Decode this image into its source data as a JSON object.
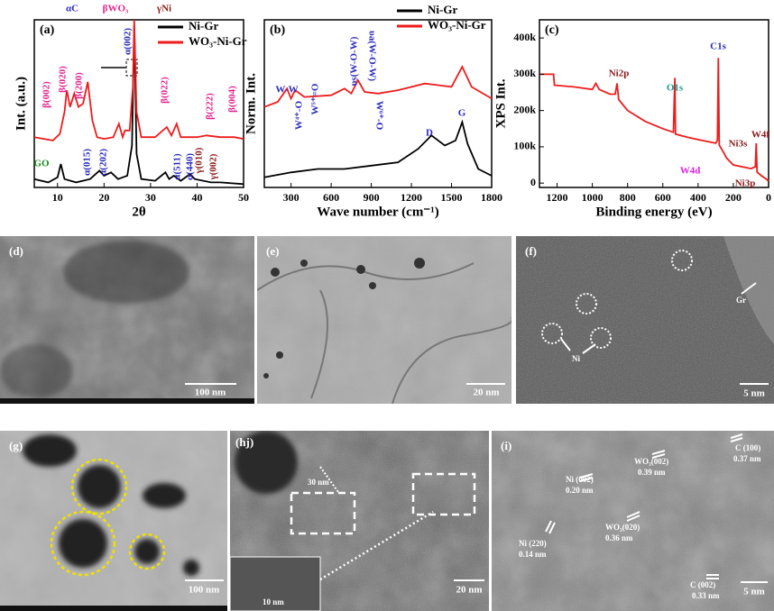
{
  "chart_data": [
    {
      "type": "line",
      "panel": "(a)",
      "xlabel": "2θ",
      "ylabel": "Int. (a.u.)",
      "xlim": [
        5,
        50
      ],
      "xticks": [
        10,
        20,
        30,
        40,
        50
      ],
      "ylim": [
        0,
        10
      ],
      "legend": "upper right",
      "series": [
        {
          "name": "Ni-Gr",
          "color": "#000000",
          "x": [
            5,
            8,
            10,
            10.7,
            11.5,
            14,
            17,
            19,
            20,
            21.5,
            23,
            25,
            26,
            26.5,
            27,
            28,
            31,
            33.2,
            34,
            35,
            36.5,
            38.5,
            39.5,
            43,
            45,
            50
          ],
          "values": [
            0.5,
            0.3,
            0.6,
            1.4,
            0.5,
            0.3,
            0.5,
            1.0,
            0.7,
            0.9,
            0.5,
            0.7,
            2.5,
            9.6,
            2.0,
            0.5,
            0.4,
            0.9,
            0.5,
            0.7,
            0.4,
            0.8,
            0.5,
            0.3,
            0.3,
            0.2
          ]
        },
        {
          "name": "WO₃-Ni-Gr",
          "color": "#ee1c1c",
          "x": [
            5,
            9,
            10.5,
            11.5,
            12,
            12.7,
            13.6,
            14.5,
            15.5,
            16.5,
            17.5,
            18.5,
            20,
            22,
            23.2,
            24,
            24.5,
            25.5,
            26.2,
            26.5,
            27,
            28,
            31,
            33.5,
            34.5,
            35.6,
            36.5,
            40,
            42,
            45,
            48,
            50
          ],
          "values": [
            3.0,
            2.8,
            3.2,
            4.5,
            5.8,
            4.8,
            5.6,
            4.8,
            5.0,
            6.3,
            4.0,
            3.0,
            2.9,
            3.0,
            3.8,
            3.0,
            3.4,
            3.4,
            6.0,
            10,
            4.5,
            3.0,
            3.0,
            3.6,
            3.1,
            3.8,
            3.0,
            3.0,
            3.1,
            3.0,
            3.0,
            2.9
          ]
        }
      ],
      "annotations": [
        {
          "text": "αC",
          "color": "#2b2bbd"
        },
        {
          "text": "βWO₃",
          "color": "#e0248f"
        },
        {
          "text": "γNi",
          "color": "#8b1a1a"
        },
        {
          "text": "β(002)",
          "color": "#e0248f"
        },
        {
          "text": "β(020)",
          "color": "#e0248f"
        },
        {
          "text": "β(200)",
          "color": "#e0248f"
        },
        {
          "text": "β(022)",
          "color": "#e0248f"
        },
        {
          "text": "β(222)",
          "color": "#e0248f"
        },
        {
          "text": "β(004)",
          "color": "#e0248f"
        },
        {
          "text": "α(002)",
          "color": "#2b2bbd"
        },
        {
          "text": "GO",
          "color": "#1a8a1a"
        },
        {
          "text": "α(015)",
          "color": "#2b2bbd"
        },
        {
          "text": "α(202)",
          "color": "#2b2bbd"
        },
        {
          "text": "α(511)",
          "color": "#2b2bbd"
        },
        {
          "text": "α(440)",
          "color": "#2b2bbd"
        },
        {
          "text": "γ(010)",
          "color": "#8b1a1a"
        },
        {
          "text": "γ(002)",
          "color": "#8b1a1a"
        }
      ]
    },
    {
      "type": "line",
      "panel": "(b)",
      "xlabel": "Wave number (cm⁻¹)",
      "ylabel": "Norm. Int.",
      "xlim": [
        100,
        1800
      ],
      "xticks": [
        300,
        600,
        900,
        1200,
        1500,
        1800
      ],
      "ylim": [
        0,
        10
      ],
      "legend": "upper right",
      "series": [
        {
          "name": "Ni-Gr",
          "color": "#000000",
          "x": [
            100,
            300,
            500,
            700,
            900,
            1100,
            1250,
            1350,
            1450,
            1530,
            1580,
            1620,
            1700,
            1800
          ],
          "values": [
            0.6,
            0.9,
            1.1,
            1.1,
            1.3,
            1.5,
            2.3,
            3.1,
            2.5,
            2.8,
            3.9,
            2.6,
            1.1,
            0.7
          ]
        },
        {
          "name": "WO₃-Ni-Gr",
          "color": "#ee1c1c",
          "x": [
            100,
            200,
            270,
            300,
            330,
            400,
            600,
            700,
            750,
            800,
            850,
            950,
            1100,
            1300,
            1400,
            1500,
            1580,
            1650,
            1800
          ],
          "values": [
            4.8,
            5.1,
            5.9,
            5.3,
            5.8,
            5.4,
            5.5,
            5.9,
            5.6,
            6.4,
            5.7,
            5.6,
            5.8,
            6.2,
            6.1,
            6.0,
            7.2,
            6.0,
            5.3
          ]
        }
      ],
      "annotations": [
        {
          "text": "W-W",
          "color": "#2b2bbd"
        },
        {
          "text": "W⁴⁺-O",
          "color": "#2b2bbd"
        },
        {
          "text": "W⁵⁺=O",
          "color": "#2b2bbd"
        },
        {
          "text": "υs(W-O-W)",
          "color": "#2b2bbd"
        },
        {
          "text": "υa(W-O-W)",
          "color": "#2b2bbd"
        },
        {
          "text": "W⁶⁺-O",
          "color": "#2b2bbd"
        },
        {
          "text": "D",
          "color": "#2b2bbd"
        },
        {
          "text": "G",
          "color": "#2b2bbd"
        }
      ]
    },
    {
      "type": "line",
      "panel": "(c)",
      "xlabel": "Binding energy (eV)",
      "ylabel": "XPS Int.",
      "xlim": [
        1300,
        0
      ],
      "xticks": [
        1200,
        1000,
        800,
        600,
        400,
        200,
        0
      ],
      "ylim": [
        -12000,
        450000
      ],
      "yticks": [
        0,
        {
          "value": 100000,
          "label": "100k"
        },
        {
          "value": 200000,
          "label": "200k"
        },
        {
          "value": 300000,
          "label": "300k"
        },
        {
          "value": 400000,
          "label": "400k"
        }
      ],
      "series": [
        {
          "name": "WO₃-Ni-Gr",
          "color": "#ee1c1c",
          "x": [
            1300,
            1220,
            1215,
            1100,
            1000,
            980,
            960,
            900,
            870,
            860,
            850,
            800,
            700,
            600,
            540,
            532,
            528,
            450,
            400,
            300,
            290,
            285,
            280,
            250,
            240,
            200,
            100,
            75,
            70,
            65,
            40,
            10,
            0
          ],
          "values": [
            300000,
            300000,
            270000,
            265000,
            258000,
            275000,
            258000,
            245000,
            245000,
            275000,
            230000,
            200000,
            170000,
            150000,
            140000,
            290000,
            135000,
            125000,
            120000,
            110000,
            118000,
            345000,
            105000,
            80000,
            70000,
            50000,
            40000,
            45000,
            110000,
            30000,
            20000,
            10000,
            5000
          ]
        }
      ],
      "annotations": [
        {
          "text": "Ni2p",
          "color": "#8b1a1a"
        },
        {
          "text": "O1s",
          "color": "#139a9a"
        },
        {
          "text": "C1s",
          "color": "#2b2bbd"
        },
        {
          "text": "W4f",
          "color": "#8b1a1a"
        },
        {
          "text": "Ni3s",
          "color": "#8b1a1a"
        },
        {
          "text": "W4d",
          "color": "#e020e0"
        },
        {
          "text": "Ni3p",
          "color": "#8b1a1a"
        }
      ]
    }
  ],
  "images": [
    {
      "label": "(d)",
      "scale": "100 nm"
    },
    {
      "label": "(e)",
      "scale": "20 nm"
    },
    {
      "label": "(f)",
      "scale": "5 nm",
      "notes": [
        "Gr",
        "Ni"
      ]
    },
    {
      "label": "(g)",
      "scale": "100 nm"
    },
    {
      "label": "(hj)",
      "scale": "20 nm",
      "notes": [
        "30 nm",
        "10 nm"
      ]
    },
    {
      "label": "(i)",
      "scale": "5 nm",
      "notes": [
        "Ni (220)",
        "0.14 nm",
        "Ni (002)",
        "0.20 nm",
        "WO₃(002)",
        "0.39 nm",
        "C (100)",
        "0.37 nm",
        "WO₃(020)",
        "0.36 nm",
        "C (002)",
        "0.33 nm"
      ]
    }
  ]
}
